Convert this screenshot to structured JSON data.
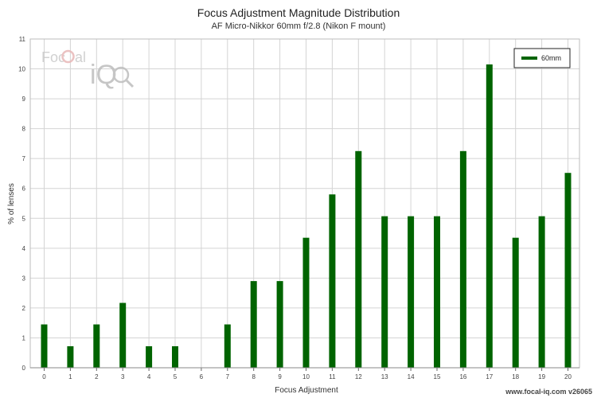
{
  "chart_data": {
    "type": "bar",
    "title": "Focus Adjustment Magnitude Distribution",
    "subtitle": "AF Micro-Nikkor 60mm f/2.8 (Nikon F mount)",
    "xlabel": "Focus Adjustment",
    "ylabel": "% of lenses",
    "ylim": [
      0,
      11
    ],
    "yticks": [
      0,
      1,
      2,
      3,
      4,
      5,
      6,
      7,
      8,
      9,
      10,
      11
    ],
    "categories": [
      "0",
      "1",
      "2",
      "3",
      "4",
      "5",
      "6",
      "7",
      "8",
      "9",
      "10",
      "11",
      "12",
      "13",
      "14",
      "15",
      "16",
      "17",
      "18",
      "19",
      "20"
    ],
    "series": [
      {
        "name": "60mm",
        "color": "#006400",
        "values": [
          1.45,
          0.72,
          1.45,
          2.17,
          0.72,
          0.72,
          0,
          1.45,
          2.9,
          2.9,
          4.35,
          5.8,
          7.25,
          5.07,
          5.07,
          5.07,
          7.25,
          10.15,
          4.35,
          5.07,
          6.52
        ]
      }
    ],
    "grid": true,
    "legend_position": "top-right"
  },
  "logo": {
    "text_left": "Foc",
    "text_right": "al",
    "text_iq": "iQ"
  },
  "footer": "www.focal-iq.com  v26065"
}
